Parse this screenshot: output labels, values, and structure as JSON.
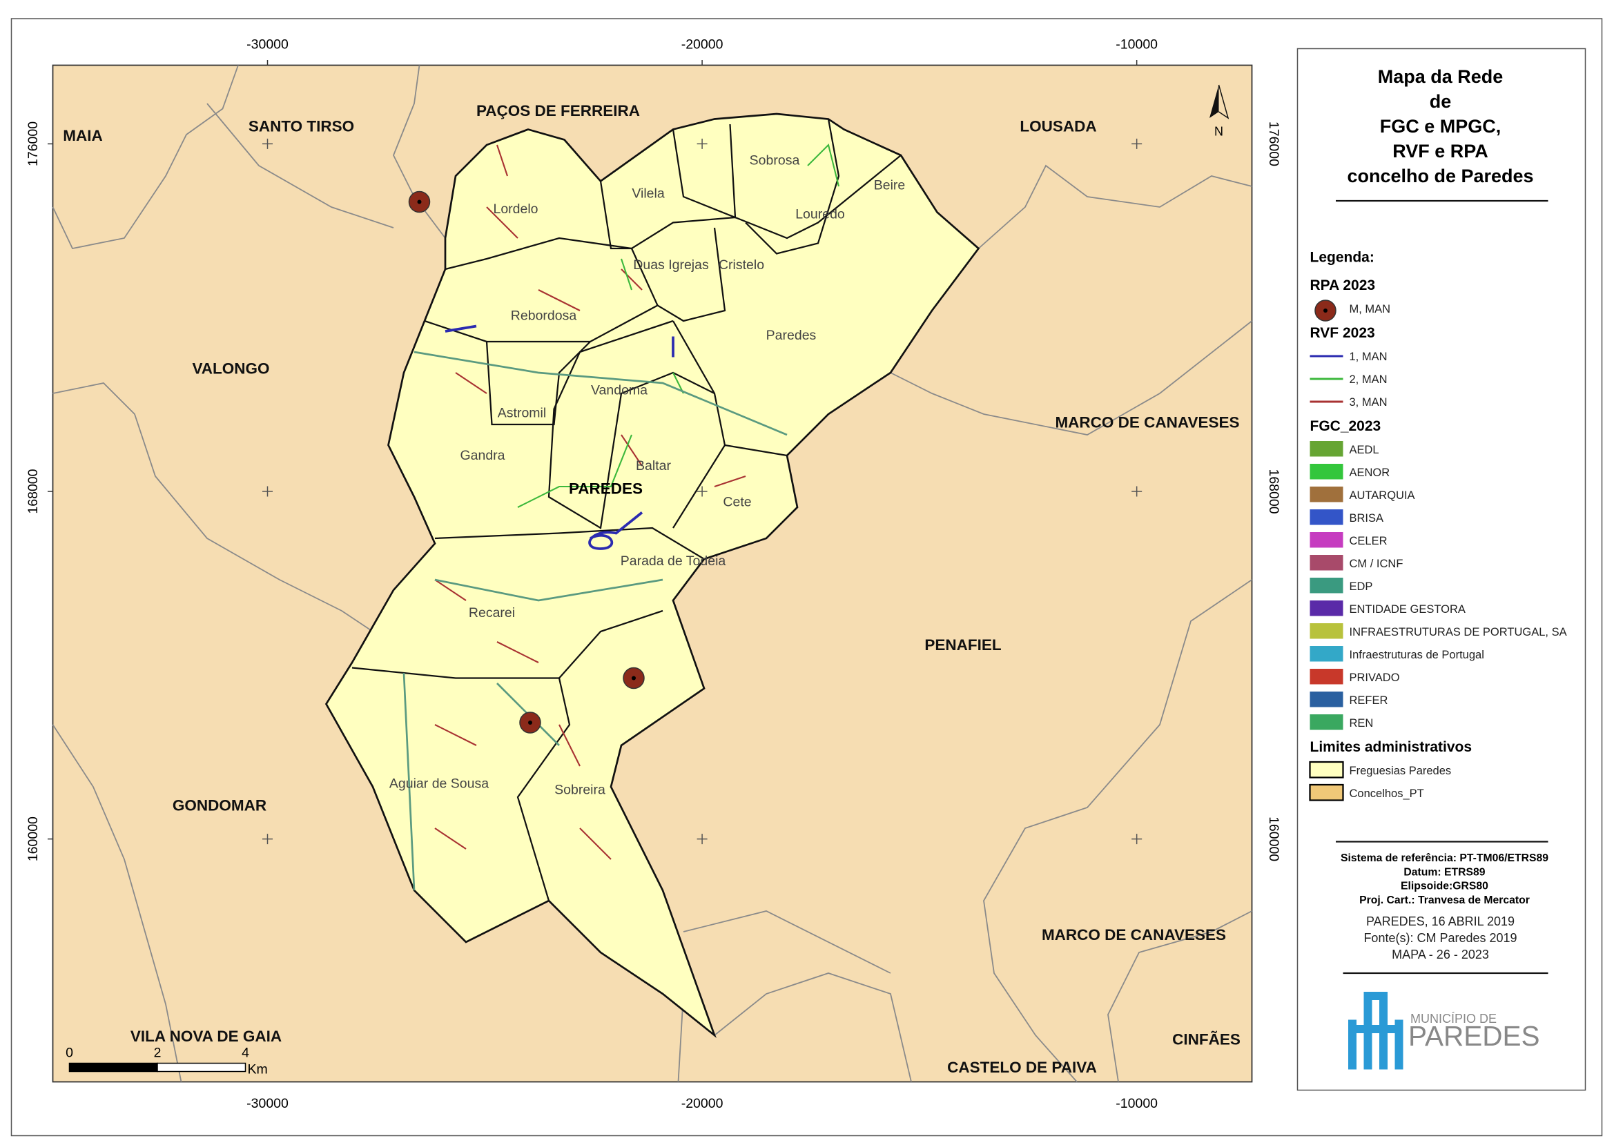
{
  "axes": {
    "xlim": [
      -34940,
      -7350
    ],
    "xticks": [
      -30000,
      -20000,
      -10000
    ],
    "ylim": [
      154410,
      177810
    ],
    "yticks": [
      176000,
      168000,
      160000
    ]
  },
  "municipalities": [
    "MAIA",
    "SANTO TIRSO",
    "PAÇOS DE FERREIRA",
    "LOUSADA",
    "VALONGO",
    "MARCO DE CANAVESES",
    "PENAFIEL",
    "GONDOMAR",
    "MARCO DE CANAVESES",
    "VILA NOVA DE GAIA",
    "CINFÃES",
    "CASTELO DE PAIVA"
  ],
  "concelho_label": "PAREDES",
  "parishes": [
    "Lordelo",
    "Vilela",
    "Sobrosa",
    "Beire",
    "Louredo",
    "Duas Igrejas",
    "Cristelo",
    "Rebordosa",
    "Paredes",
    "Vandoma",
    "Astromil",
    "Gandra",
    "Baltar",
    "Cete",
    "Parada de Todeia",
    "Recarei",
    "Aguiar de Sousa",
    "Sobreira"
  ],
  "north": "N",
  "scale_bar": {
    "ticks": [
      0,
      2,
      4
    ],
    "unit": "Km"
  },
  "legend": {
    "title": [
      "Mapa da Rede",
      "de",
      "FGC e MPGC,",
      "RVF e RPA",
      "concelho de Paredes"
    ],
    "heading": "Legenda:",
    "sections": [
      {
        "title": "RPA 2023",
        "symbol": "point",
        "items": [
          {
            "label": "M, MAN",
            "color": "#8b2a1a"
          }
        ]
      },
      {
        "title": "RVF 2023",
        "symbol": "line",
        "items": [
          {
            "label": "1, MAN",
            "color": "#2b2bb0"
          },
          {
            "label": "2, MAN",
            "color": "#3cb83c"
          },
          {
            "label": "3, MAN",
            "color": "#a83232"
          }
        ]
      },
      {
        "title": "FGC_2023",
        "symbol": "fill",
        "items": [
          {
            "label": "AEDL",
            "color": "#66a533"
          },
          {
            "label": "AENOR",
            "color": "#33c63c"
          },
          {
            "label": "AUTARQUIA",
            "color": "#a0703c"
          },
          {
            "label": "BRISA",
            "color": "#3355c8"
          },
          {
            "label": "CELER",
            "color": "#c63cc0"
          },
          {
            "label": "CM / ICNF",
            "color": "#a84a6a"
          },
          {
            "label": "EDP",
            "color": "#3a9a80"
          },
          {
            "label": "ENTIDADE GESTORA",
            "color": "#5a2aa8"
          },
          {
            "label": "INFRAESTRUTURAS DE PORTUGAL, SA",
            "color": "#b8c23c"
          },
          {
            "label": "Infraestruturas de Portugal",
            "color": "#33a8c8"
          },
          {
            "label": "PRIVADO",
            "color": "#c8382a"
          },
          {
            "label": "REFER",
            "color": "#2a60a0"
          },
          {
            "label": "REN",
            "color": "#3aa860"
          }
        ]
      },
      {
        "title": "Limites administrativos",
        "symbol": "area",
        "items": [
          {
            "label": "Freguesias Paredes",
            "color": "#ffffc0"
          },
          {
            "label": "Concelhos_PT",
            "color": "#f0c878"
          }
        ]
      }
    ]
  },
  "info": {
    "bold_lines": [
      "Sistema de referência: PT-TM06/ETRS89",
      "Datum: ETRS89",
      "Elipsoide:GRS80",
      "Proj. Cart.: Tranvesa de Mercator"
    ],
    "lines": [
      "PAREDES, 16 ABRIL 2019",
      "Fonte(s): CM Paredes 2019",
      "MAPA - 26 - 2023"
    ]
  },
  "logo": {
    "top": "MUNICÍPIO DE",
    "bottom": "PAREDES"
  }
}
